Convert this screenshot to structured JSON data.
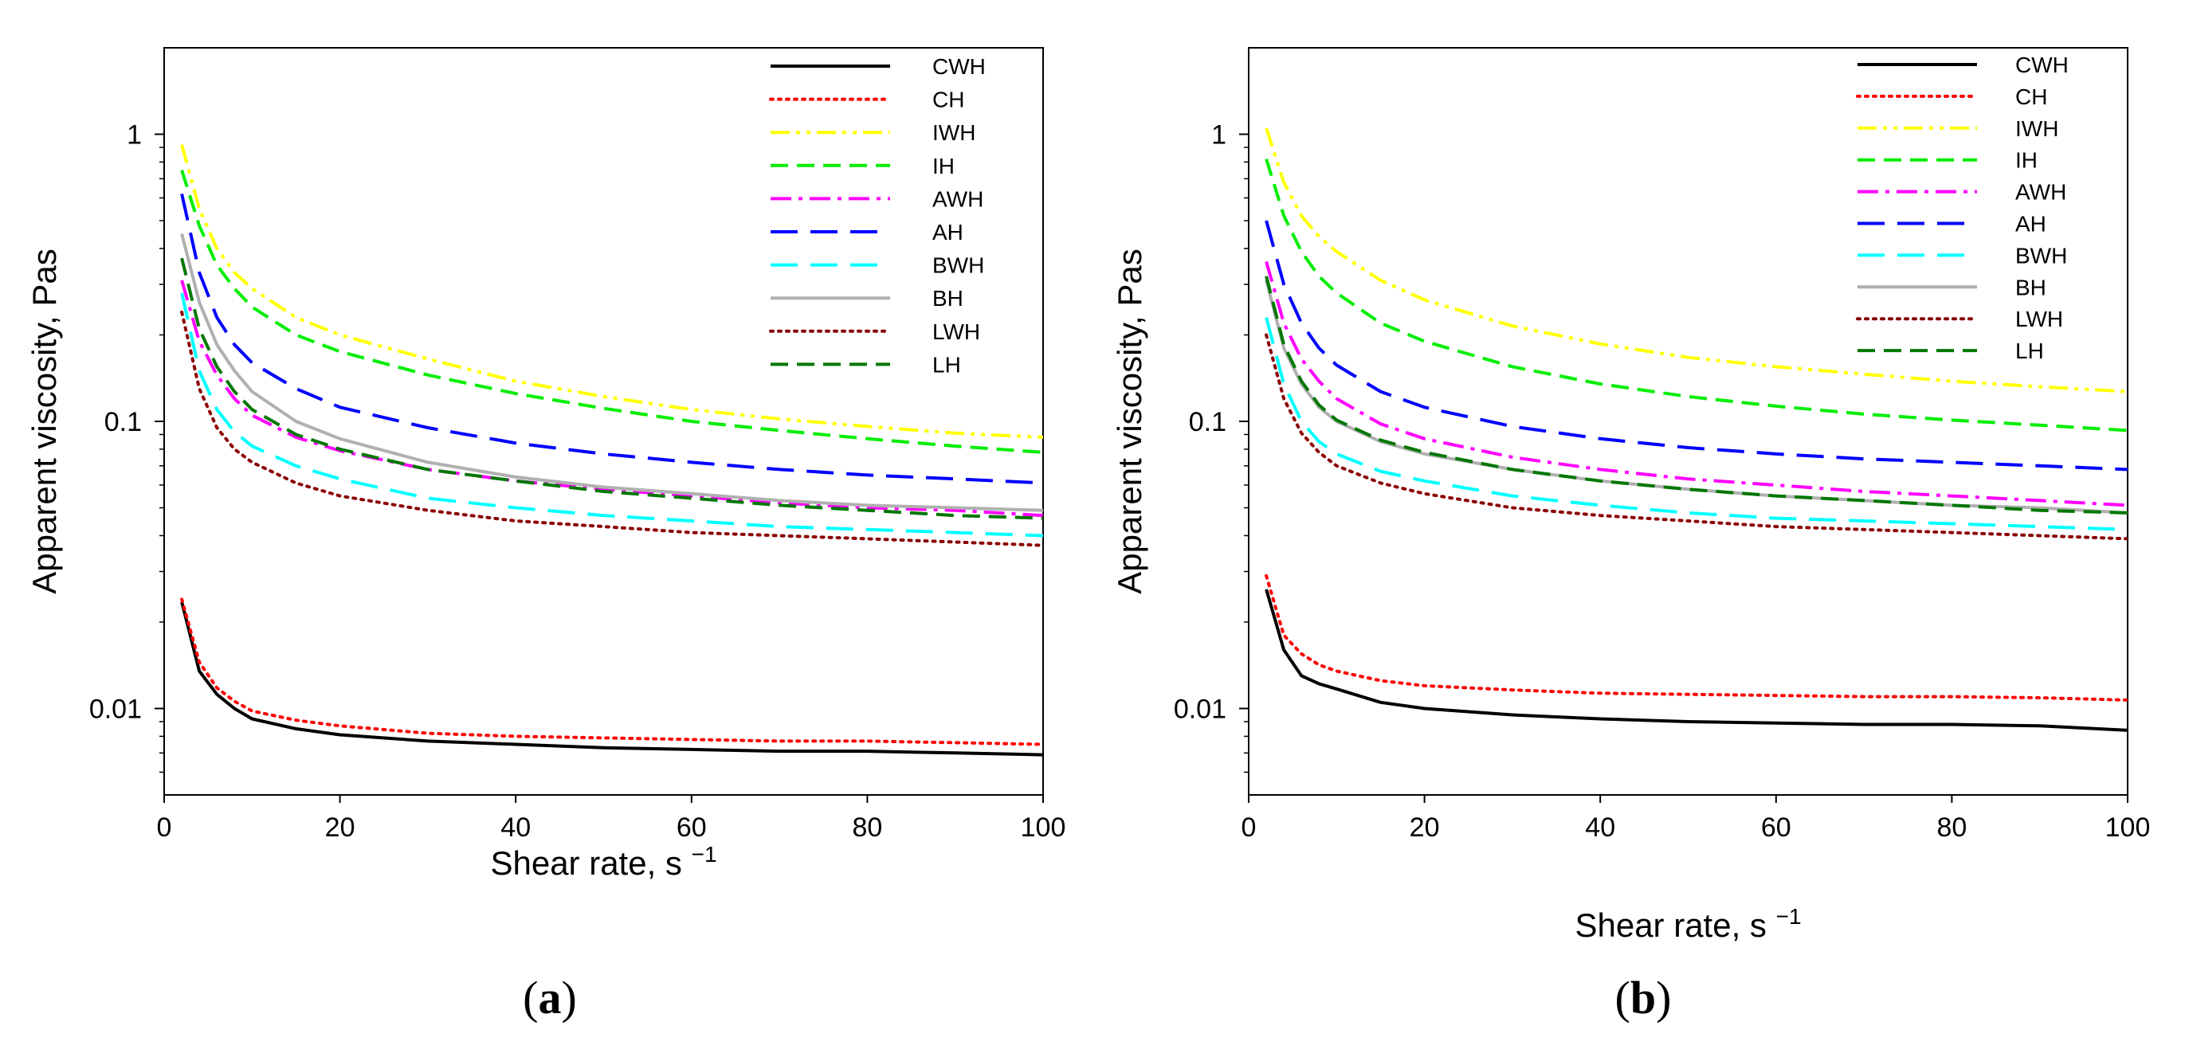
{
  "chart_data": [
    {
      "type": "line",
      "panel": "a",
      "panel_label": {
        "open": "(",
        "letter": "a",
        "close": ")"
      },
      "xlabel": "Shear rate, s",
      "xlabel_sup": "−1",
      "ylabel": "Apparent viscosity, Pas",
      "xlim": [
        0,
        100
      ],
      "ylim": [
        0.005,
        2
      ],
      "yscale": "log",
      "x_ticks": [
        0,
        20,
        40,
        60,
        80,
        100
      ],
      "y_ticks": [
        {
          "value": 0.01,
          "label": "0.01"
        },
        {
          "value": 0.1,
          "label": "0.1"
        },
        {
          "value": 1,
          "label": "1"
        }
      ],
      "legend_position": "top-right",
      "x": [
        2,
        4,
        6,
        8,
        10,
        15,
        20,
        30,
        40,
        50,
        60,
        70,
        80,
        90,
        100
      ],
      "series": [
        {
          "name": "CWH",
          "color": "#000000",
          "style": "solid",
          "values": [
            0.0235,
            0.0135,
            0.0112,
            0.01,
            0.0092,
            0.0085,
            0.0081,
            0.0077,
            0.0075,
            0.0073,
            0.0072,
            0.0071,
            0.0071,
            0.007,
            0.0069
          ]
        },
        {
          "name": "CH",
          "color": "#ff0000",
          "style": "dotted",
          "values": [
            0.024,
            0.0145,
            0.0118,
            0.0106,
            0.0098,
            0.0091,
            0.0087,
            0.0082,
            0.008,
            0.0079,
            0.0078,
            0.0077,
            0.0077,
            0.0076,
            0.0075
          ]
        },
        {
          "name": "IWH",
          "color": "#ffff00",
          "style": "dashdotdot",
          "values": [
            0.92,
            0.55,
            0.4,
            0.33,
            0.29,
            0.23,
            0.2,
            0.165,
            0.138,
            0.122,
            0.11,
            0.102,
            0.096,
            0.091,
            0.088
          ]
        },
        {
          "name": "IH",
          "color": "#00ee00",
          "style": "dashed",
          "values": [
            0.75,
            0.48,
            0.35,
            0.29,
            0.25,
            0.2,
            0.175,
            0.145,
            0.125,
            0.111,
            0.1,
            0.093,
            0.087,
            0.082,
            0.078
          ]
        },
        {
          "name": "AWH",
          "color": "#ff00ff",
          "style": "dashdot",
          "values": [
            0.31,
            0.19,
            0.145,
            0.12,
            0.105,
            0.088,
            0.079,
            0.068,
            0.062,
            0.058,
            0.055,
            0.052,
            0.05,
            0.049,
            0.047
          ]
        },
        {
          "name": "AH",
          "color": "#0000ff",
          "style": "longdash",
          "values": [
            0.62,
            0.33,
            0.23,
            0.185,
            0.16,
            0.13,
            0.112,
            0.095,
            0.084,
            0.077,
            0.072,
            0.068,
            0.065,
            0.063,
            0.061
          ]
        },
        {
          "name": "BWH",
          "color": "#00ffff",
          "style": "longdash",
          "values": [
            0.28,
            0.15,
            0.11,
            0.092,
            0.082,
            0.07,
            0.063,
            0.054,
            0.05,
            0.047,
            0.045,
            0.043,
            0.042,
            0.041,
            0.04
          ]
        },
        {
          "name": "BH",
          "color": "#b0b0b0",
          "style": "solid",
          "values": [
            0.45,
            0.26,
            0.185,
            0.15,
            0.127,
            0.1,
            0.087,
            0.072,
            0.064,
            0.059,
            0.056,
            0.053,
            0.051,
            0.05,
            0.049
          ]
        },
        {
          "name": "LWH",
          "color": "#8b0000",
          "style": "dotted",
          "values": [
            0.24,
            0.13,
            0.095,
            0.08,
            0.072,
            0.061,
            0.055,
            0.049,
            0.045,
            0.043,
            0.041,
            0.04,
            0.039,
            0.038,
            0.037
          ]
        },
        {
          "name": "LH",
          "color": "#007700",
          "style": "dashed",
          "values": [
            0.37,
            0.21,
            0.155,
            0.127,
            0.11,
            0.09,
            0.08,
            0.068,
            0.062,
            0.057,
            0.054,
            0.051,
            0.049,
            0.047,
            0.046
          ]
        }
      ]
    },
    {
      "type": "line",
      "panel": "b",
      "panel_label": {
        "open": "(",
        "letter": "b",
        "close": ")"
      },
      "xlabel": "Shear rate, s",
      "xlabel_sup": "−1",
      "ylabel": "Apparent viscosity, Pas",
      "xlim": [
        0,
        100
      ],
      "ylim": [
        0.005,
        2
      ],
      "yscale": "log",
      "x_ticks": [
        0,
        20,
        40,
        60,
        80,
        100
      ],
      "y_ticks": [
        {
          "value": 0.01,
          "label": "0.01"
        },
        {
          "value": 0.1,
          "label": "0.1"
        },
        {
          "value": 1,
          "label": "1"
        }
      ],
      "legend_position": "top-right",
      "x": [
        2,
        4,
        6,
        8,
        10,
        15,
        20,
        30,
        40,
        50,
        60,
        70,
        80,
        90,
        100
      ],
      "series": [
        {
          "name": "CWH",
          "color": "#000000",
          "style": "solid",
          "values": [
            0.026,
            0.016,
            0.013,
            0.0122,
            0.0117,
            0.0105,
            0.01,
            0.0095,
            0.0092,
            0.009,
            0.0089,
            0.0088,
            0.0088,
            0.0087,
            0.0084
          ]
        },
        {
          "name": "CH",
          "color": "#ff0000",
          "style": "dotted",
          "values": [
            0.029,
            0.018,
            0.0155,
            0.0142,
            0.0135,
            0.0125,
            0.012,
            0.0116,
            0.0113,
            0.0112,
            0.0111,
            0.011,
            0.011,
            0.0109,
            0.0107
          ]
        },
        {
          "name": "IWH",
          "color": "#ffff00",
          "style": "dashdotdot",
          "values": [
            1.05,
            0.68,
            0.52,
            0.44,
            0.39,
            0.31,
            0.265,
            0.215,
            0.186,
            0.167,
            0.155,
            0.146,
            0.138,
            0.132,
            0.127
          ]
        },
        {
          "name": "IH",
          "color": "#00ee00",
          "style": "dashed",
          "values": [
            0.82,
            0.52,
            0.39,
            0.32,
            0.28,
            0.22,
            0.19,
            0.155,
            0.135,
            0.122,
            0.113,
            0.106,
            0.101,
            0.097,
            0.093
          ]
        },
        {
          "name": "AWH",
          "color": "#ff00ff",
          "style": "dashdot",
          "values": [
            0.36,
            0.22,
            0.165,
            0.138,
            0.12,
            0.098,
            0.087,
            0.075,
            0.068,
            0.063,
            0.06,
            0.057,
            0.055,
            0.053,
            0.051
          ]
        },
        {
          "name": "AH",
          "color": "#0000ff",
          "style": "longdash",
          "values": [
            0.5,
            0.3,
            0.22,
            0.18,
            0.157,
            0.127,
            0.112,
            0.096,
            0.087,
            0.081,
            0.077,
            0.074,
            0.072,
            0.07,
            0.068
          ]
        },
        {
          "name": "BWH",
          "color": "#00ffff",
          "style": "longdash",
          "values": [
            0.23,
            0.135,
            0.1,
            0.085,
            0.077,
            0.067,
            0.062,
            0.055,
            0.051,
            0.048,
            0.046,
            0.045,
            0.044,
            0.043,
            0.042
          ]
        },
        {
          "name": "BH",
          "color": "#b0b0b0",
          "style": "solid",
          "values": [
            0.31,
            0.18,
            0.135,
            0.112,
            0.1,
            0.085,
            0.077,
            0.068,
            0.062,
            0.058,
            0.055,
            0.053,
            0.051,
            0.05,
            0.048
          ]
        },
        {
          "name": "LWH",
          "color": "#8b0000",
          "style": "dotted",
          "values": [
            0.2,
            0.12,
            0.091,
            0.078,
            0.07,
            0.061,
            0.056,
            0.05,
            0.047,
            0.045,
            0.043,
            0.042,
            0.041,
            0.04,
            0.039
          ]
        },
        {
          "name": "LH",
          "color": "#007700",
          "style": "dashed",
          "values": [
            0.32,
            0.185,
            0.138,
            0.114,
            0.101,
            0.086,
            0.078,
            0.068,
            0.062,
            0.058,
            0.055,
            0.053,
            0.051,
            0.049,
            0.048
          ]
        }
      ]
    }
  ]
}
